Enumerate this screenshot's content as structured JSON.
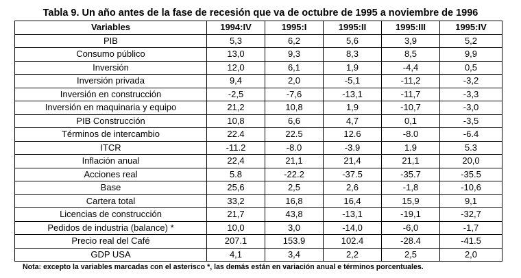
{
  "title": "Tabla 9. Un año antes de la fase de recesión que va de octubre de 1995 a noviembre de 1996",
  "table": {
    "headers": [
      "Variables",
      "1994:IV",
      "1995:I",
      "1995:II",
      "1995:III",
      "1995:IV"
    ],
    "rows": [
      [
        "PIB",
        "5,3",
        "6,2",
        "5,6",
        "3,9",
        "5,2"
      ],
      [
        "Consumo público",
        "13,0",
        "9,3",
        "8,3",
        "8,5",
        "9,9"
      ],
      [
        "Inversión",
        "12,0",
        "6,1",
        "1,9",
        "-4,4",
        "0,5"
      ],
      [
        "Inversión privada",
        "9,4",
        "2,0",
        "-5,1",
        "-11,2",
        "-3,2"
      ],
      [
        "Inversión en construcción",
        "-2,5",
        "-7,6",
        "-13,1",
        "-11,7",
        "-3,3"
      ],
      [
        "Inversión en maquinaria y equipo",
        "21,2",
        "10,8",
        "1,9",
        "-10,7",
        "-3,0"
      ],
      [
        "PIB Construcción",
        "10,8",
        "6,6",
        "4,7",
        "0,1",
        "-3,5"
      ],
      [
        "Términos de intercambio",
        "22.4",
        "22.5",
        "12.6",
        "-8.0",
        "-6.4"
      ],
      [
        "ITCR",
        "-11.2",
        "-8.0",
        "-3.9",
        "1.9",
        "5.3"
      ],
      [
        "Inflación anual",
        "22,4",
        "21,1",
        "21,4",
        "21,1",
        "20,0"
      ],
      [
        "Acciones real",
        "5.8",
        "-22.2",
        "-37.5",
        "-35.7",
        "-35.5"
      ],
      [
        "Base",
        "25,6",
        "2,5",
        "2,6",
        "-1,8",
        "-10,6"
      ],
      [
        "Cartera total",
        "33,2",
        "16,8",
        "16,4",
        "15,9",
        "9,1"
      ],
      [
        "Licencias de construcción",
        "21,7",
        "43,8",
        "-13,1",
        "-19,1",
        "-32,7"
      ],
      [
        "Pedidos de industria (balance) *",
        "10,0",
        "3,0",
        "-14,0",
        "-6,0",
        "-1,7"
      ],
      [
        "Precio real del Café",
        "207.1",
        "153.9",
        "102.4",
        "-28.4",
        "-41.5"
      ],
      [
        "GDP USA",
        "4,1",
        "3,4",
        "2,2",
        "2,5",
        "2,0"
      ]
    ]
  },
  "note": "Nota: excepto la variables marcadas con el asterisco *, las demás están en variación anual e términos porcentuales."
}
